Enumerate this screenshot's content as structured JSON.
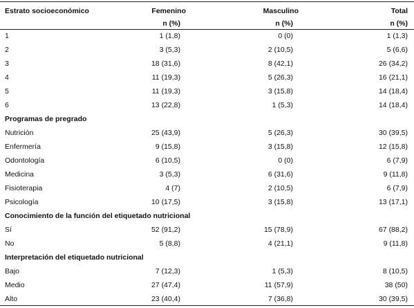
{
  "header": {
    "col0": "Estrato socioeconómico",
    "col1": "Femenino",
    "col2": "Masculino",
    "col3": "Total",
    "sub1": "n (%)",
    "sub2": "n (%)",
    "sub3": "n (%)"
  },
  "rows": [
    {
      "label": "1",
      "f": "1 (1,8)",
      "m": "0 (0)",
      "t": "1 (1,3)"
    },
    {
      "label": "2",
      "f": "3 (5,3)",
      "m": "2 (10,5)",
      "t": "5 (6,6)"
    },
    {
      "label": "3",
      "f": "18 (31,6)",
      "m": "8 (42,1)",
      "t": "26 (34,2)"
    },
    {
      "label": "4",
      "f": "11 (19,3)",
      "m": "5 (26,3)",
      "t": "16 (21,1)"
    },
    {
      "label": "5",
      "f": "11 (19,3)",
      "m": "3 (15,8)",
      "t": "14 (18,4)"
    },
    {
      "label": "6",
      "f": "13 (22,8)",
      "m": "1 (5,3)",
      "t": "14 (18,4)"
    },
    {
      "label": "Programas de pregrado",
      "section": true
    },
    {
      "label": "Nutrición",
      "f": "25 (43,9)",
      "m": "5 (26,3)",
      "t": "30 (39,5)"
    },
    {
      "label": "Enfermería",
      "f": "9 (15,8)",
      "m": "3 (15,8)",
      "t": "12 (15,8)"
    },
    {
      "label": "Odontología",
      "f": "6 (10,5)",
      "m": "0 (0)",
      "t": "6 (7,9)"
    },
    {
      "label": "Medicina",
      "f": "3 (5,3)",
      "m": "6 (31,6)",
      "t": "9 (11,8)"
    },
    {
      "label": "Fisioterapia",
      "f": "4 (7)",
      "m": "2 (10,5)",
      "t": "6 (7,9)"
    },
    {
      "label": "Psicología",
      "f": "10 (17,5)",
      "m": "3 (15,8)",
      "t": "13 (17,1)"
    },
    {
      "label": "Conocimiento de la función del etiquetado nutricional",
      "section": true
    },
    {
      "label": "Sí",
      "f": "52 (91,2)",
      "m": "15 (78,9)",
      "t": "67 (88,2)"
    },
    {
      "label": "No",
      "f": "5 (8,8)",
      "m": "4 (21,1)",
      "t": "9 (11,8)"
    },
    {
      "label": "Interpretación del etiquetado nutricional",
      "section": true
    },
    {
      "label": "Bajo",
      "f": "7 (12,3)",
      "m": "1 (5,3)",
      "t": "8 (10,5)"
    },
    {
      "label": "Medio",
      "f": "27 (47,4)",
      "m": "11 (57,9)",
      "t": "38 (50)"
    },
    {
      "label": "Alto",
      "f": "23 (40,4)",
      "m": "7 (36,8)",
      "t": "30 (39,5)"
    }
  ]
}
